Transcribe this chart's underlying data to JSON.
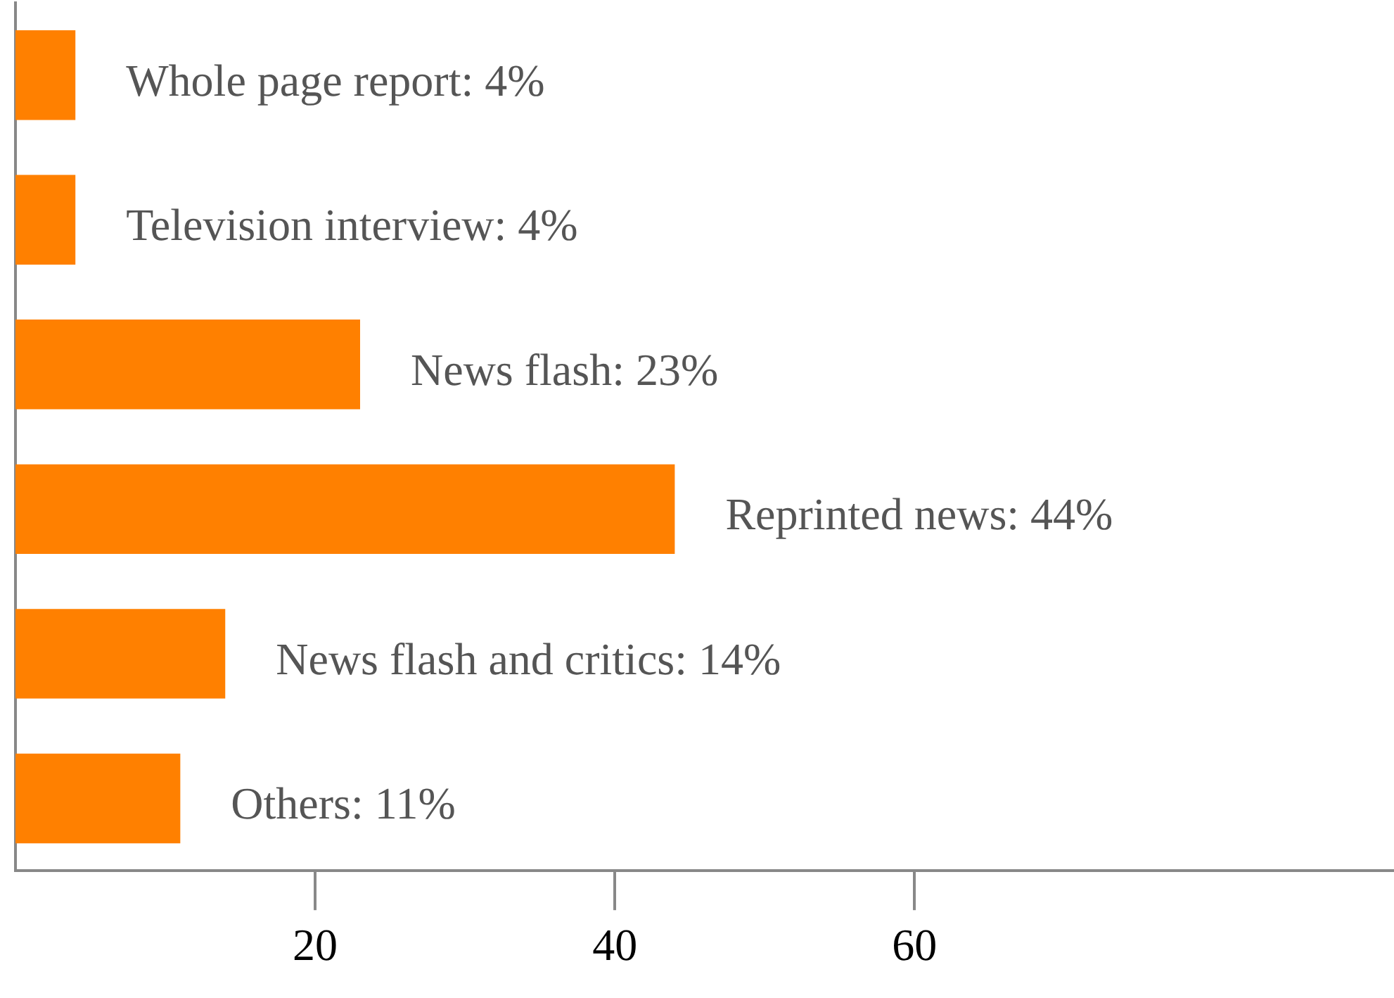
{
  "chart_data": {
    "type": "bar",
    "orientation": "horizontal",
    "categories": [
      null,
      null,
      null,
      null,
      null,
      null
    ],
    "values": [
      4,
      4,
      23,
      44,
      14,
      11
    ],
    "color": "#ff8000",
    "value_labels": [
      "Whole page report: 4%",
      "Television interview: 4%",
      "News flash: 23%",
      "Reprinted news: 44%",
      "News flash and critics: 14%",
      "Others: 11%"
    ],
    "xlim": [
      0,
      92
    ],
    "xticks": [
      20,
      40,
      60
    ],
    "grid": false,
    "legend": false,
    "tick_labels": "x"
  }
}
